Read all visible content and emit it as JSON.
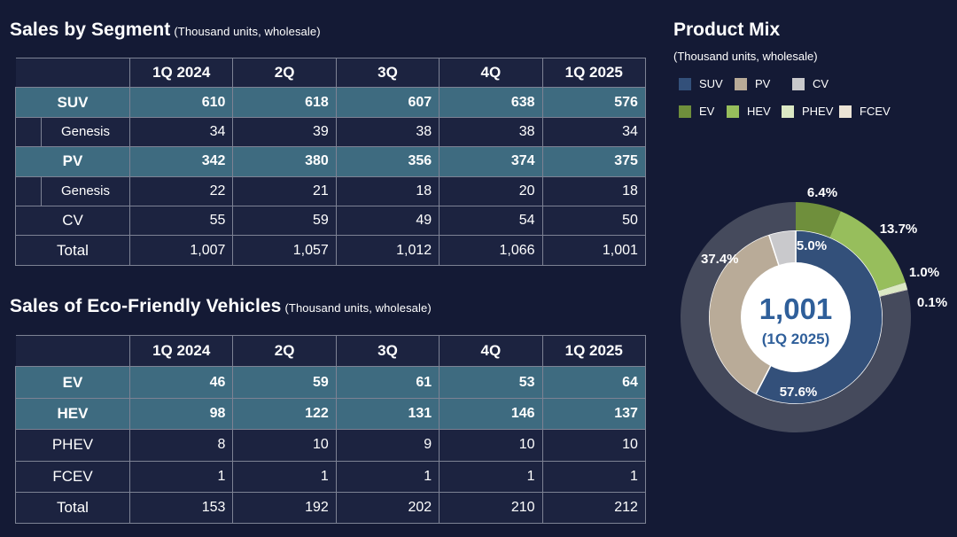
{
  "segment": {
    "title": "Sales by Segment",
    "subtitle": "(Thousand units, wholesale)",
    "columns": [
      "1Q 2024",
      "2Q",
      "3Q",
      "4Q",
      "1Q 2025"
    ],
    "rows": [
      {
        "label": "SUV",
        "values": [
          "610",
          "618",
          "607",
          "638",
          "576"
        ]
      },
      {
        "label": "Genesis",
        "values": [
          "34",
          "39",
          "38",
          "38",
          "34"
        ]
      },
      {
        "label": "PV",
        "values": [
          "342",
          "380",
          "356",
          "374",
          "375"
        ]
      },
      {
        "label": "Genesis",
        "values": [
          "22",
          "21",
          "18",
          "20",
          "18"
        ]
      },
      {
        "label": "CV",
        "values": [
          "55",
          "59",
          "49",
          "54",
          "50"
        ]
      },
      {
        "label": "Total",
        "values": [
          "1,007",
          "1,057",
          "1,012",
          "1,066",
          "1,001"
        ]
      }
    ]
  },
  "eco": {
    "title": "Sales of Eco-Friendly Vehicles",
    "subtitle": "(Thousand units, wholesale)",
    "columns": [
      "1Q 2024",
      "2Q",
      "3Q",
      "4Q",
      "1Q 2025"
    ],
    "rows": [
      {
        "label": "EV",
        "values": [
          "46",
          "59",
          "61",
          "53",
          "64"
        ]
      },
      {
        "label": "HEV",
        "values": [
          "98",
          "122",
          "131",
          "146",
          "137"
        ]
      },
      {
        "label": "PHEV",
        "values": [
          "8",
          "10",
          "9",
          "10",
          "10"
        ]
      },
      {
        "label": "FCEV",
        "values": [
          "1",
          "1",
          "1",
          "1",
          "1"
        ]
      },
      {
        "label": "Total",
        "values": [
          "153",
          "192",
          "202",
          "210",
          "212"
        ]
      }
    ]
  },
  "mix": {
    "title": "Product Mix",
    "subtitle": "(Thousand units, wholesale)",
    "legend": [
      {
        "label": "SUV",
        "color": "#33507a"
      },
      {
        "label": "PV",
        "color": "#b9ab98"
      },
      {
        "label": "CV",
        "color": "#c9c9cc"
      },
      {
        "label": "EV",
        "color": "#6f8f3c"
      },
      {
        "label": "HEV",
        "color": "#97be5c"
      },
      {
        "label": "PHEV",
        "color": "#dbe8c4"
      },
      {
        "label": "FCEV",
        "color": "#ece4d6"
      }
    ],
    "center_value": "1,001",
    "center_label": "(1Q 2025)"
  },
  "chart_data": {
    "type": "pie",
    "title": "Product Mix",
    "rings": [
      {
        "name": "segment",
        "slices": [
          {
            "label": "SUV",
            "value": 57.6,
            "value_label": "57.6%",
            "color": "#33507a"
          },
          {
            "label": "PV",
            "value": 37.4,
            "value_label": "37.4%",
            "color": "#b9ab98"
          },
          {
            "label": "CV",
            "value": 5.0,
            "value_label": "5.0%",
            "color": "#c9c9cc"
          }
        ]
      },
      {
        "name": "powertrain",
        "slices": [
          {
            "label": "EV",
            "value": 6.4,
            "value_label": "6.4%",
            "color": "#6f8f3c"
          },
          {
            "label": "HEV",
            "value": 13.7,
            "value_label": "13.7%",
            "color": "#97be5c"
          },
          {
            "label": "PHEV",
            "value": 1.0,
            "value_label": "1.0%",
            "color": "#dbe8c4"
          },
          {
            "label": "FCEV",
            "value": 0.1,
            "value_label": "0.1%",
            "color": "#ece4d6"
          },
          {
            "label": "",
            "value": 78.8,
            "value_label": "",
            "color": "#454a5c"
          }
        ]
      }
    ]
  }
}
